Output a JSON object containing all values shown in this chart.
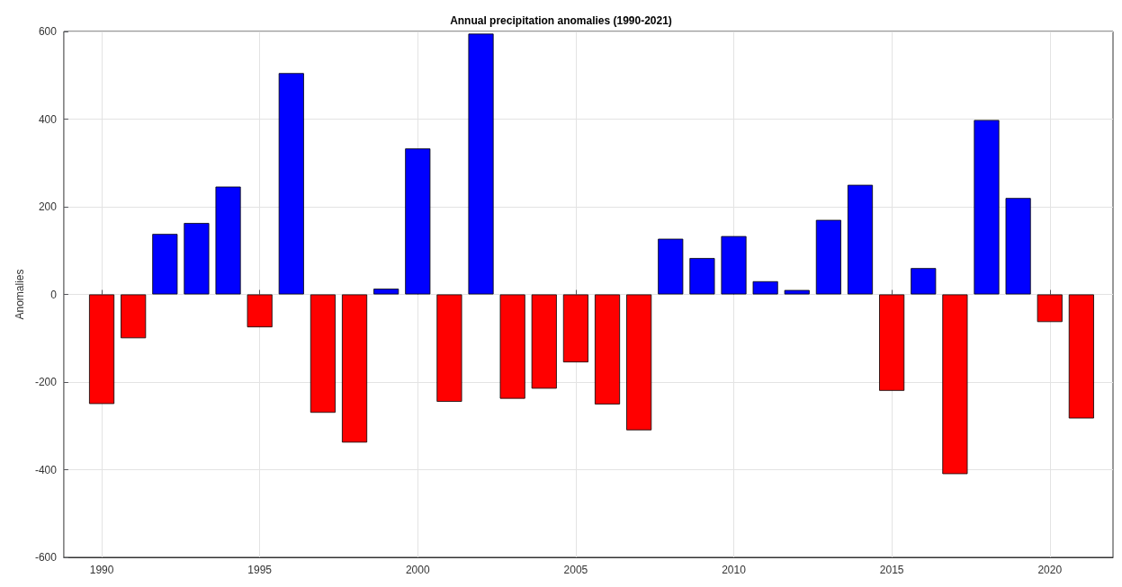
{
  "chart_data": {
    "type": "bar",
    "title": "Annual precipitation anomalies (1990-2021)",
    "ylabel": "Anomalies",
    "x": [
      1990,
      1991,
      1992,
      1993,
      1994,
      1995,
      1996,
      1997,
      1998,
      1999,
      2000,
      2001,
      2002,
      2003,
      2004,
      2005,
      2006,
      2007,
      2008,
      2009,
      2010,
      2011,
      2012,
      2013,
      2014,
      2015,
      2016,
      2017,
      2018,
      2019,
      2020,
      2021
    ],
    "values": [
      -250,
      -100,
      138,
      163,
      246,
      -75,
      505,
      -270,
      -338,
      13,
      333,
      -245,
      595,
      -238,
      -215,
      -155,
      -251,
      -310,
      127,
      83,
      133,
      30,
      10,
      170,
      250,
      -220,
      60,
      -410,
      398,
      220,
      -63,
      -283
    ],
    "colors": [
      "#ff0000",
      "#ff0000",
      "#0000ff",
      "#0000ff",
      "#0000ff",
      "#ff0000",
      "#0000ff",
      "#ff0000",
      "#ff0000",
      "#0000ff",
      "#0000ff",
      "#ff0000",
      "#0000ff",
      "#ff0000",
      "#ff0000",
      "#ff0000",
      "#ff0000",
      "#ff0000",
      "#0000ff",
      "#0000ff",
      "#0000ff",
      "#0000ff",
      "#0000ff",
      "#0000ff",
      "#0000ff",
      "#ff0000",
      "#0000ff",
      "#ff0000",
      "#0000ff",
      "#0000ff",
      "#ff0000",
      "#ff0000"
    ],
    "xlim": [
      1988.8,
      2022
    ],
    "xticks": [
      1990,
      1995,
      2000,
      2005,
      2010,
      2015,
      2020
    ],
    "ylim": [
      -600,
      600
    ],
    "yticks": [
      -600,
      -400,
      -200,
      0,
      200,
      400,
      600
    ],
    "grid": true
  }
}
